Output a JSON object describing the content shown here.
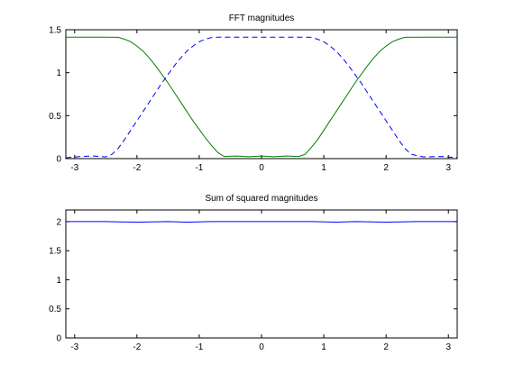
{
  "chart_data": [
    {
      "type": "line",
      "title": "FFT magnitudes",
      "xlabel": "",
      "ylabel": "",
      "xlim": [
        -3.1416,
        3.1416
      ],
      "ylim": [
        0,
        1.5
      ],
      "xticks": [
        -3,
        -2,
        -1,
        0,
        1,
        2,
        3
      ],
      "yticks": [
        0,
        0.5,
        1,
        1.5
      ],
      "xtick_labels": [
        "-3",
        "-2",
        "-1",
        "0",
        "1",
        "2",
        "3"
      ],
      "ytick_labels": [
        "0",
        "0.5",
        "1",
        "1.5"
      ],
      "grid": false,
      "series": [
        {
          "color": "#007f00",
          "dash": "solid",
          "x": [
            -3.14,
            -2.8,
            -2.5,
            -2.3,
            -2.2,
            -2.1,
            -2.0,
            -1.9,
            -1.8,
            -1.7,
            -1.6,
            -1.5,
            -1.4,
            -1.3,
            -1.2,
            -1.1,
            -1.0,
            -0.9,
            -0.8,
            -0.7,
            -0.6,
            -0.4,
            -0.2,
            0.0,
            0.2,
            0.4,
            0.6,
            0.7,
            0.8,
            0.9,
            1.0,
            1.1,
            1.2,
            1.3,
            1.4,
            1.5,
            1.6,
            1.7,
            1.8,
            1.9,
            2.0,
            2.1,
            2.2,
            2.3,
            2.5,
            2.8,
            3.14
          ],
          "y": [
            1.414,
            1.414,
            1.414,
            1.412,
            1.39,
            1.36,
            1.31,
            1.25,
            1.17,
            1.08,
            0.98,
            0.88,
            0.77,
            0.66,
            0.55,
            0.44,
            0.34,
            0.24,
            0.15,
            0.07,
            0.025,
            0.03,
            0.022,
            0.03,
            0.022,
            0.03,
            0.025,
            0.05,
            0.13,
            0.22,
            0.33,
            0.44,
            0.55,
            0.66,
            0.77,
            0.88,
            0.98,
            1.08,
            1.17,
            1.25,
            1.31,
            1.36,
            1.39,
            1.412,
            1.414,
            1.414,
            1.414
          ]
        },
        {
          "color": "#0000ff",
          "dash": "dashed",
          "x": [
            -3.14,
            -2.9,
            -2.7,
            -2.5,
            -2.4,
            -2.3,
            -2.2,
            -2.1,
            -2.0,
            -1.9,
            -1.8,
            -1.7,
            -1.6,
            -1.5,
            -1.4,
            -1.3,
            -1.2,
            -1.1,
            -1.0,
            -0.9,
            -0.8,
            -0.7,
            -0.6,
            -0.3,
            0.0,
            0.3,
            0.6,
            0.7,
            0.8,
            0.9,
            1.0,
            1.1,
            1.2,
            1.3,
            1.4,
            1.5,
            1.6,
            1.7,
            1.8,
            1.9,
            2.0,
            2.1,
            2.2,
            2.3,
            2.4,
            2.6,
            2.9,
            3.14
          ],
          "y": [
            0.01,
            0.025,
            0.03,
            0.02,
            0.05,
            0.12,
            0.22,
            0.33,
            0.44,
            0.55,
            0.66,
            0.77,
            0.88,
            0.98,
            1.08,
            1.17,
            1.25,
            1.31,
            1.36,
            1.39,
            1.41,
            1.414,
            1.414,
            1.414,
            1.414,
            1.414,
            1.414,
            1.414,
            1.412,
            1.39,
            1.36,
            1.31,
            1.25,
            1.17,
            1.08,
            0.98,
            0.88,
            0.77,
            0.66,
            0.55,
            0.44,
            0.33,
            0.22,
            0.12,
            0.05,
            0.02,
            0.025,
            0.01
          ]
        }
      ]
    },
    {
      "type": "line",
      "title": "Sum of squared magnitudes",
      "xlabel": "",
      "ylabel": "",
      "xlim": [
        -3.1416,
        3.1416
      ],
      "ylim": [
        0,
        2.2
      ],
      "xticks": [
        -3,
        -2,
        -1,
        0,
        1,
        2,
        3
      ],
      "yticks": [
        0,
        0.5,
        1,
        1.5,
        2
      ],
      "xtick_labels": [
        "-3",
        "-2",
        "-1",
        "0",
        "1",
        "2",
        "3"
      ],
      "ytick_labels": [
        "0",
        "0.5",
        "1",
        "1.5",
        "2"
      ],
      "grid": false,
      "series": [
        {
          "color": "#0000ff",
          "dash": "solid",
          "x": [
            -3.14,
            -2.5,
            -2.0,
            -1.5,
            -1.2,
            -0.8,
            -0.4,
            0.0,
            0.4,
            0.8,
            1.2,
            1.5,
            2.0,
            2.5,
            3.14
          ],
          "y": [
            2.0,
            2.0,
            1.99,
            2.0,
            1.99,
            2.0,
            2.0,
            2.0,
            2.0,
            2.0,
            1.99,
            2.0,
            1.99,
            2.0,
            2.0
          ]
        }
      ]
    }
  ]
}
